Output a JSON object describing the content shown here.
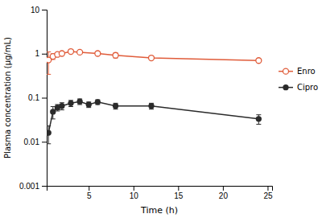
{
  "chart_data": {
    "type": "line",
    "xlabel": "Time (h)",
    "ylabel": "Plasma concentration (μg/mL)",
    "log": "y",
    "grid": false,
    "legend": "right",
    "xlim": [
      0.3,
      25.5
    ],
    "xticks": [
      5,
      10,
      15,
      20,
      25
    ],
    "ylim": [
      0.001,
      10
    ],
    "yticks": [
      0.001,
      0.01,
      0.1,
      1,
      10
    ],
    "series": [
      {
        "name": "Enro",
        "color": "#E05C3A",
        "marker": "circle-open",
        "x": [
          0.5,
          1.0,
          1.5,
          2.0,
          3.0,
          4.0,
          6.0,
          8.0,
          12.0,
          24.0
        ],
        "values": [
          0.72,
          0.87,
          0.96,
          1.01,
          1.12,
          1.08,
          1.01,
          0.92,
          0.8,
          0.7
        ],
        "error_low": [
          0.38,
          0.13,
          0.08,
          0.07,
          0.08,
          0.07,
          0.06,
          0.12,
          0.05,
          0.04
        ],
        "error_high": [
          0.38,
          0.13,
          0.08,
          0.07,
          0.08,
          0.07,
          0.06,
          0.12,
          0.05,
          0.04
        ]
      },
      {
        "name": "Cipro",
        "color": "#2B2B2B",
        "marker": "circle",
        "x": [
          0.5,
          1.0,
          1.5,
          2.0,
          3.0,
          4.0,
          5.0,
          6.0,
          8.0,
          12.0,
          24.0
        ],
        "values": [
          0.016,
          0.048,
          0.06,
          0.065,
          0.075,
          0.082,
          0.07,
          0.08,
          0.065,
          0.065,
          0.033
        ],
        "error_low": [
          0.007,
          0.015,
          0.01,
          0.012,
          0.012,
          0.012,
          0.01,
          0.01,
          0.01,
          0.01,
          0.008
        ],
        "error_high": [
          0.007,
          0.015,
          0.01,
          0.012,
          0.012,
          0.012,
          0.01,
          0.01,
          0.01,
          0.01,
          0.008
        ]
      }
    ]
  }
}
